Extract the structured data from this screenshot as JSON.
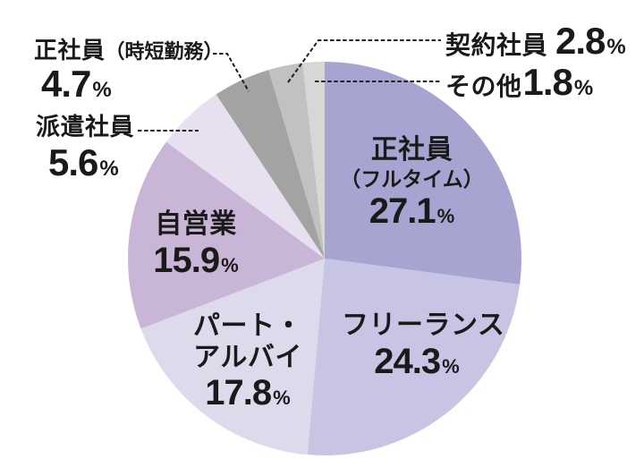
{
  "chart_data": {
    "type": "pie",
    "title": "",
    "unit": "%",
    "percent_sign": "%",
    "start_angle": "top",
    "direction": "clockwise",
    "background": "#ffffff",
    "text_color": "#1a1a1a",
    "legend_position": "labels-on-and-around-slices-with-dashed-leader-lines",
    "center": [
      363,
      289
    ],
    "radius": 220,
    "slices": [
      {
        "label": "正社員（フルタイム）",
        "line1": "正社員",
        "line2": "（フルタイム）",
        "value": 27.1,
        "value_text": "27.1",
        "color": "#a7a4d1",
        "label_placement": "inside"
      },
      {
        "label": "フリーランス",
        "line1": "フリーランス",
        "value": 24.3,
        "value_text": "24.3",
        "color": "#c7c5e3",
        "label_placement": "inside"
      },
      {
        "label": "パート・アルバイ",
        "line1": "パート・",
        "line2": "アルバイ",
        "value": 17.8,
        "value_text": "17.8",
        "color": "#dcdbec",
        "label_placement": "inside"
      },
      {
        "label": "自営業",
        "line1": "自営業",
        "value": 15.9,
        "value_text": "15.9",
        "color": "#c9b5d6",
        "label_placement": "inside"
      },
      {
        "label": "派遣社員",
        "line1": "派遣社員",
        "value": 5.6,
        "value_text": "5.6",
        "color": "#e7e0f0",
        "label_placement": "outside-left"
      },
      {
        "label": "正社員（時短勤務）",
        "line1": "正社員",
        "line2": "（時短勤務）",
        "value": 4.7,
        "value_text": "4.7",
        "color": "#a4a3a3",
        "label_placement": "outside-left"
      },
      {
        "label": "契約社員",
        "line1": "契約社員",
        "value": 2.8,
        "value_text": "2.8",
        "color": "#c2c1c1",
        "label_placement": "outside-right"
      },
      {
        "label": "その他",
        "line1": "その他",
        "value": 1.8,
        "value_text": "1.8",
        "color": "#d8d7d7",
        "label_placement": "outside-right"
      }
    ]
  }
}
